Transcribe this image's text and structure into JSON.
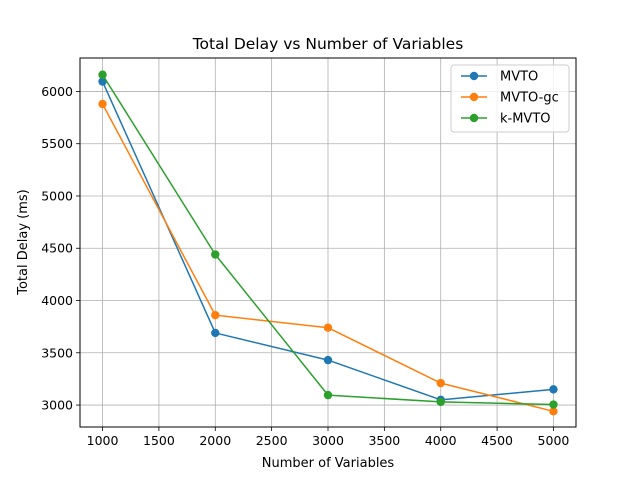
{
  "chart_data": {
    "type": "line",
    "title": "Total Delay vs Number of Variables",
    "xlabel": "Number of Variables",
    "ylabel": "Total Delay (ms)",
    "x": [
      1000,
      2000,
      3000,
      4000,
      5000
    ],
    "xlim": [
      800,
      5200
    ],
    "ylim": [
      2790,
      6320
    ],
    "xticks": [
      1000,
      1500,
      2000,
      2500,
      3000,
      3500,
      4000,
      4500,
      5000
    ],
    "yticks": [
      3000,
      3500,
      4000,
      4500,
      5000,
      5500,
      6000
    ],
    "grid": true,
    "legend_position": "top-right",
    "series": [
      {
        "name": "MVTO",
        "color": "#1f77b4",
        "values": [
          6095,
          3690,
          3430,
          3050,
          3150
        ]
      },
      {
        "name": "MVTO-gc",
        "color": "#ff7f0e",
        "values": [
          5880,
          3860,
          3740,
          3210,
          2940
        ]
      },
      {
        "name": "k-MVTO",
        "color": "#2ca02c",
        "values": [
          6160,
          4440,
          3095,
          3030,
          3005
        ]
      }
    ]
  }
}
